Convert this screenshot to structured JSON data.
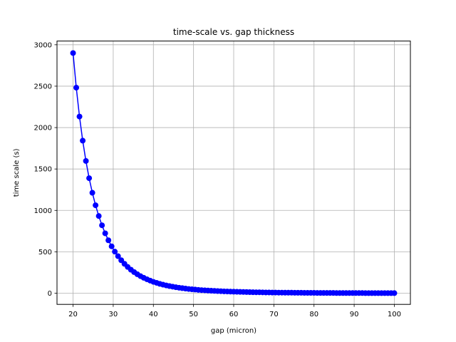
{
  "chart_data": {
    "type": "line",
    "title": "time-scale vs. gap thickness",
    "xlabel": "gap (micron)",
    "ylabel": "time scale (s)",
    "xlim": [
      16,
      104
    ],
    "ylim": [
      -135,
      3045
    ],
    "xticks": [
      20,
      30,
      40,
      50,
      60,
      70,
      80,
      90,
      100
    ],
    "yticks": [
      0,
      500,
      1000,
      1500,
      2000,
      2500,
      3000
    ],
    "grid": true,
    "marker": "circle",
    "line_color": "#0000ff",
    "series": [
      {
        "name": "",
        "x": [
          20.0,
          20.8,
          21.6,
          22.4,
          23.2,
          24.0,
          24.8,
          25.6,
          26.4,
          27.2,
          28.0,
          28.8,
          29.6,
          30.4,
          31.2,
          32.0,
          32.8,
          33.6,
          34.4,
          35.2,
          36.0,
          36.8,
          37.6,
          38.4,
          39.2,
          40.0,
          40.8,
          41.6,
          42.4,
          43.2,
          44.0,
          44.8,
          45.6,
          46.4,
          47.2,
          48.0,
          48.8,
          49.6,
          50.4,
          51.2,
          52.0,
          52.8,
          53.6,
          54.4,
          55.2,
          56.0,
          56.8,
          57.6,
          58.4,
          59.2,
          60.0,
          60.8,
          61.6,
          62.4,
          63.2,
          64.0,
          64.8,
          65.6,
          66.4,
          67.2,
          68.0,
          68.8,
          69.6,
          70.4,
          71.2,
          72.0,
          72.8,
          73.6,
          74.4,
          75.2,
          76.0,
          76.8,
          77.6,
          78.4,
          79.2,
          80.0,
          80.8,
          81.6,
          82.4,
          83.2,
          84.0,
          84.8,
          85.6,
          86.4,
          87.2,
          88.0,
          88.8,
          89.6,
          90.4,
          91.2,
          92.0,
          92.8,
          93.6,
          94.4,
          95.2,
          96.0,
          96.8,
          97.6,
          98.4,
          99.2,
          100.0
        ],
        "y": [
          2900,
          2482,
          2133,
          1842,
          1597,
          1389,
          1213,
          1062,
          932,
          820,
          723,
          639,
          566,
          502,
          447,
          398,
          355,
          317,
          284,
          255,
          229,
          206,
          186,
          168,
          152,
          137,
          125,
          113,
          103,
          94,
          86,
          79,
          72,
          66,
          61,
          56,
          51,
          47,
          44,
          40,
          37,
          35,
          32,
          30,
          28,
          26,
          24,
          22,
          21,
          19,
          18,
          17,
          16,
          15,
          14,
          13,
          12,
          11,
          11,
          10,
          9,
          9,
          8,
          8,
          7,
          7,
          6,
          6,
          6,
          5,
          5,
          5,
          4,
          4,
          4,
          4,
          3,
          3,
          3,
          3,
          3,
          3,
          2,
          2,
          2,
          2,
          2,
          2,
          2,
          2,
          2,
          1,
          1,
          1,
          1,
          1,
          1,
          1,
          1,
          1,
          1
        ]
      }
    ]
  }
}
